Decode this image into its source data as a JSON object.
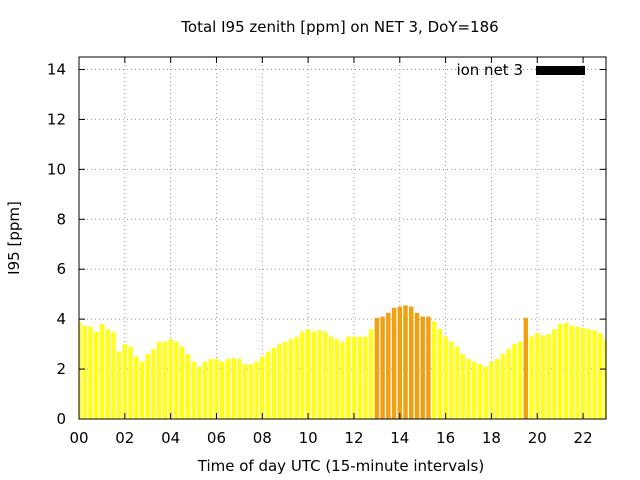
{
  "chart_data": {
    "type": "bar",
    "title": "Total I95 zenith [ppm] on NET 3, DoY=186",
    "xlabel": "Time of day UTC (15-minute intervals)",
    "ylabel": "I95 [ppm]",
    "legend": {
      "label": "ion net 3",
      "placement": "top-right",
      "color": "#000000"
    },
    "xlim": [
      0,
      23
    ],
    "ylim": [
      0,
      14.5
    ],
    "grid": true,
    "x_tick_labels": [
      "00",
      "02",
      "04",
      "06",
      "08",
      "10",
      "12",
      "14",
      "16",
      "18",
      "20",
      "22"
    ],
    "y_tick_labels": [
      "0",
      "2",
      "4",
      "6",
      "8",
      "10",
      "12",
      "14"
    ],
    "colors": {
      "low": "#ffff1a",
      "elevated": "#f0a010",
      "grid": "#999999"
    },
    "threshold": 4.0,
    "interval_hours": 0.25,
    "values": [
      3.9,
      3.75,
      3.7,
      3.5,
      3.8,
      3.6,
      3.5,
      2.7,
      3.0,
      2.9,
      2.5,
      2.3,
      2.6,
      2.8,
      3.1,
      3.1,
      3.2,
      3.1,
      2.9,
      2.6,
      2.3,
      2.1,
      2.3,
      2.4,
      2.4,
      2.3,
      2.4,
      2.45,
      2.4,
      2.2,
      2.2,
      2.3,
      2.5,
      2.7,
      2.85,
      3.0,
      3.1,
      3.2,
      3.3,
      3.5,
      3.6,
      3.5,
      3.55,
      3.5,
      3.3,
      3.2,
      3.1,
      3.3,
      3.3,
      3.3,
      3.3,
      3.6,
      4.05,
      4.1,
      4.25,
      4.45,
      4.5,
      4.55,
      4.5,
      4.25,
      4.1,
      4.1,
      3.9,
      3.6,
      3.3,
      3.1,
      2.9,
      2.6,
      2.4,
      2.3,
      2.2,
      2.1,
      2.3,
      2.4,
      2.6,
      2.8,
      3.0,
      3.1,
      4.05,
      3.3,
      3.45,
      3.35,
      3.4,
      3.6,
      3.8,
      3.85,
      3.75,
      3.7,
      3.65,
      3.6,
      3.55,
      3.45,
      3.2
    ]
  }
}
